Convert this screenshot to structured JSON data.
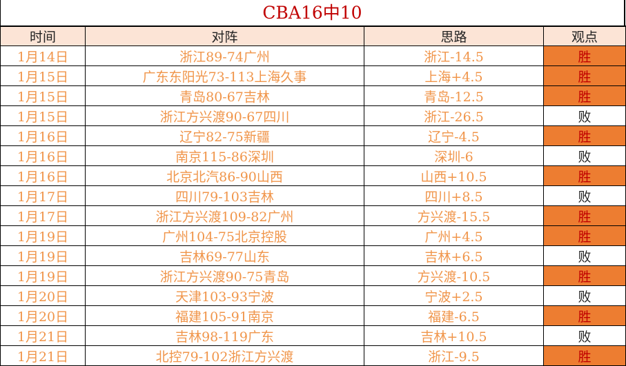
{
  "title": "CBA16中10",
  "headers": [
    "时间",
    "对阵",
    "思路",
    "观点"
  ],
  "colors": {
    "header_bg": "#FCE4D6",
    "win_bg": "#ED7D31",
    "win_text": "#C00000",
    "text": "#F0954A"
  },
  "rows": [
    [
      "1月14日",
      "浙江89-74广州",
      "浙江-14.5",
      "胜"
    ],
    [
      "1月15日",
      "广东东阳光73-113上海久事",
      "上海+4.5",
      "胜"
    ],
    [
      "1月15日",
      "青岛80-67吉林",
      "青岛-12.5",
      "胜"
    ],
    [
      "1月15日",
      "浙江方兴渡90-67四川",
      "浙江-26.5",
      "败"
    ],
    [
      "1月16日",
      "辽宁82-75新疆",
      "辽宁-4.5",
      "胜"
    ],
    [
      "1月16日",
      "南京115-86深圳",
      "深圳-6",
      "败"
    ],
    [
      "1月16日",
      "北京北汽86-90山西",
      "山西+10.5",
      "胜"
    ],
    [
      "1月17日",
      "四川79-103吉林",
      "四川+8.5",
      "败"
    ],
    [
      "1月17日",
      "浙江方兴渡109-82广州",
      "方兴渡-15.5",
      "胜"
    ],
    [
      "1月19日",
      "广州104-75北京控股",
      "广州+4.5",
      "胜"
    ],
    [
      "1月19日",
      "吉林69-77山东",
      "吉林+6.5",
      "败"
    ],
    [
      "1月19日",
      "浙江方兴渡90-75青岛",
      "方兴渡-10.5",
      "胜"
    ],
    [
      "1月20日",
      "天津103-93宁波",
      "宁波+2.5",
      "败"
    ],
    [
      "1月20日",
      "福建105-91南京",
      "福建-6.5",
      "胜"
    ],
    [
      "1月21日",
      "吉林98-119广东",
      "吉林+10.5",
      "败"
    ],
    [
      "1月21日",
      "北控79-102浙江方兴渡",
      "浙江-9.5",
      "胜"
    ]
  ]
}
